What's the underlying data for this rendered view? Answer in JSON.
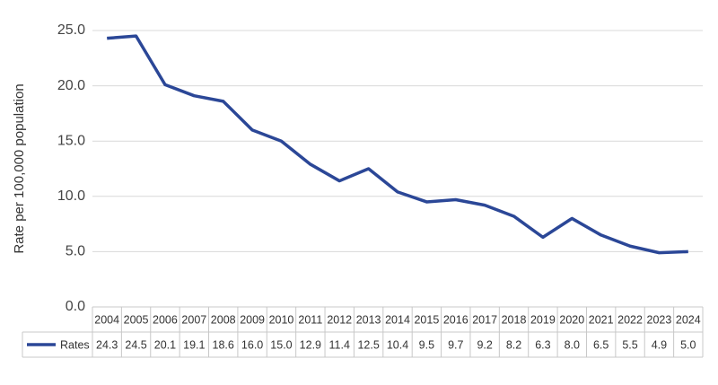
{
  "chart_data": {
    "type": "line",
    "y_label": "Rate per 100,000 population",
    "categories": [
      "2004",
      "2005",
      "2006",
      "2007",
      "2008",
      "2009",
      "2010",
      "2011",
      "2012",
      "2013",
      "2014",
      "2015",
      "2016",
      "2017",
      "2018",
      "2019",
      "2020",
      "2021",
      "2022",
      "2023",
      "2024"
    ],
    "series": [
      {
        "name": "Rates",
        "color": "#2b4797",
        "values": [
          24.3,
          24.5,
          20.1,
          19.1,
          18.6,
          16.0,
          15.0,
          12.9,
          11.4,
          12.5,
          10.4,
          9.5,
          9.7,
          9.2,
          8.2,
          6.3,
          8.0,
          6.5,
          5.5,
          4.9,
          5.0
        ],
        "value_labels": [
          "24.3",
          "24.5",
          "20.1",
          "19.1",
          "18.6",
          "16.0",
          "15.0",
          "12.9",
          "11.4",
          "12.5",
          "10.4",
          "9.5",
          "9.7",
          "9.2",
          "8.2",
          "6.3",
          "8.0",
          "6.5",
          "5.5",
          "4.9",
          "5.0"
        ]
      }
    ],
    "ylim": [
      0,
      25
    ],
    "yticks": [
      {
        "value": 0,
        "label": "0.0"
      },
      {
        "value": 5,
        "label": "5.0"
      },
      {
        "value": 10,
        "label": "10.0"
      },
      {
        "value": 15,
        "label": "15.0"
      },
      {
        "value": 20,
        "label": "20.0"
      },
      {
        "value": 25,
        "label": "25.0"
      }
    ],
    "grid": true
  }
}
